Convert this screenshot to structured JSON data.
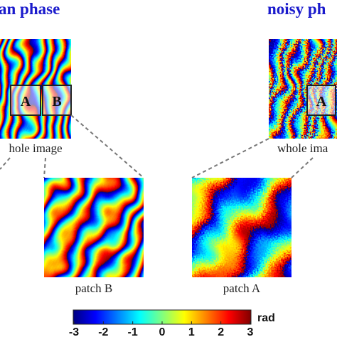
{
  "left": {
    "title": "an phase",
    "box_a": "A",
    "box_b": "B",
    "caption": "hole image"
  },
  "right": {
    "title": "noisy ph",
    "box_a": "A",
    "caption": "whole ima"
  },
  "patch_b": {
    "caption": "patch B"
  },
  "patch_a": {
    "caption": "patch A"
  },
  "colorbar": {
    "unit": "rad",
    "lim": [
      -3,
      3
    ],
    "ticks": [
      -3,
      -2,
      -1,
      0,
      1,
      2,
      3
    ]
  }
}
